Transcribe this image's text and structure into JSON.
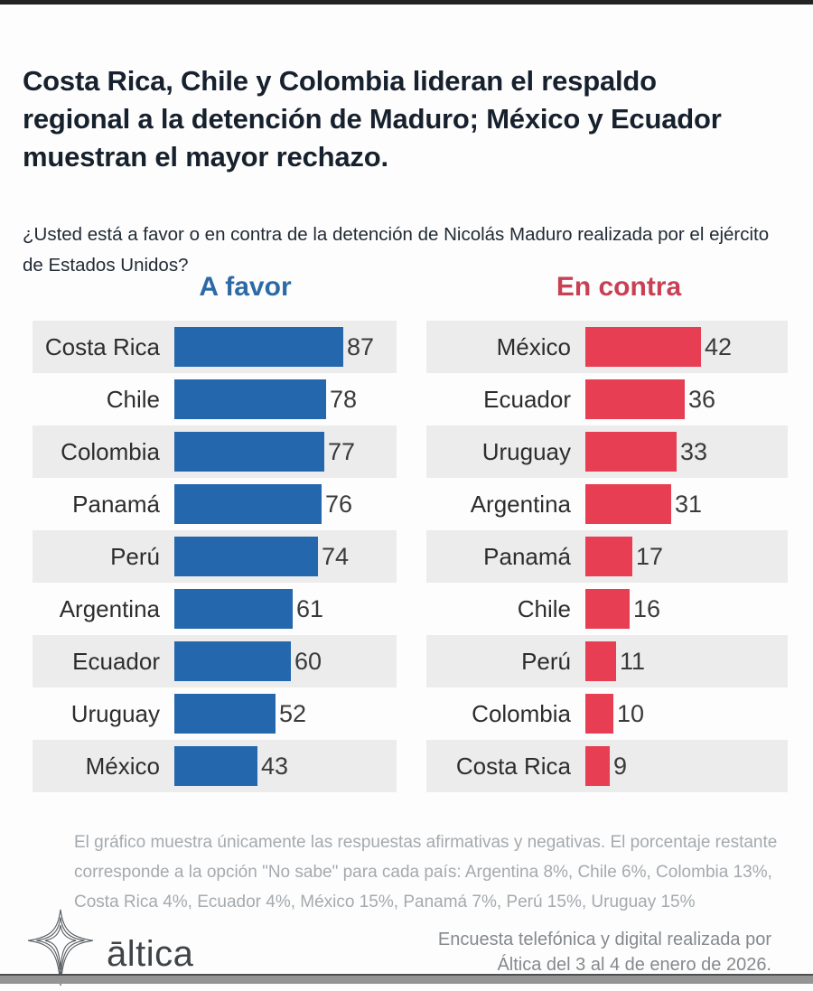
{
  "page": {
    "title": "Costa Rica, Chile y Colombia lideran el respaldo regional a la detención de Maduro; México y Ecuador muestran el mayor rechazo.",
    "question": "¿Usted está a favor o en contra de la detención de Nicolás Maduro realizada por el ejército de Estados Unidos?"
  },
  "chart_data": {
    "type": "bar",
    "orientation": "horizontal",
    "value_labels": true,
    "grid": false,
    "row_stripe_color": "#ececec",
    "panels": [
      {
        "title": "A favor",
        "title_color": "#2c6aa5",
        "bar_color": "#2467ac",
        "categories": [
          "Costa Rica",
          "Chile",
          "Colombia",
          "Panamá",
          "Perú",
          "Argentina",
          "Ecuador",
          "Uruguay",
          "México"
        ],
        "values": [
          87,
          78,
          77,
          76,
          74,
          61,
          60,
          52,
          43
        ],
        "xlim": [
          0,
          100
        ]
      },
      {
        "title": "En contra",
        "title_color": "#c74053",
        "bar_color": "#e73e53",
        "categories": [
          "México",
          "Ecuador",
          "Uruguay",
          "Argentina",
          "Panamá",
          "Chile",
          "Perú",
          "Colombia",
          "Costa Rica"
        ],
        "values": [
          42,
          36,
          33,
          31,
          17,
          16,
          11,
          10,
          9
        ],
        "xlim": [
          0,
          50
        ]
      }
    ]
  },
  "footnote": {
    "lines": [
      "El gráfico muestra únicamente las respuestas afirmativas y negativas. El porcentaje restante",
      "corresponde a la opción \"No sabe\" para cada país: Argentina 8%, Chile 6%, Colombia 13%,",
      "Costa Rica 4%, Ecuador 4%, México 15%, Panamá 7%, Perú 15%, Uruguay 15%"
    ]
  },
  "footer": {
    "logo_text": "āltica",
    "source_lines": [
      "Encuesta telefónica y digital realizada por",
      "Áltica del 3 al 4 de enero de 2026."
    ]
  },
  "colors": {
    "topbar": "#232323",
    "bottombar": "#949494",
    "title_text": "#17212e",
    "favor_blue": "#2467ac",
    "contra_red": "#e73e53"
  }
}
